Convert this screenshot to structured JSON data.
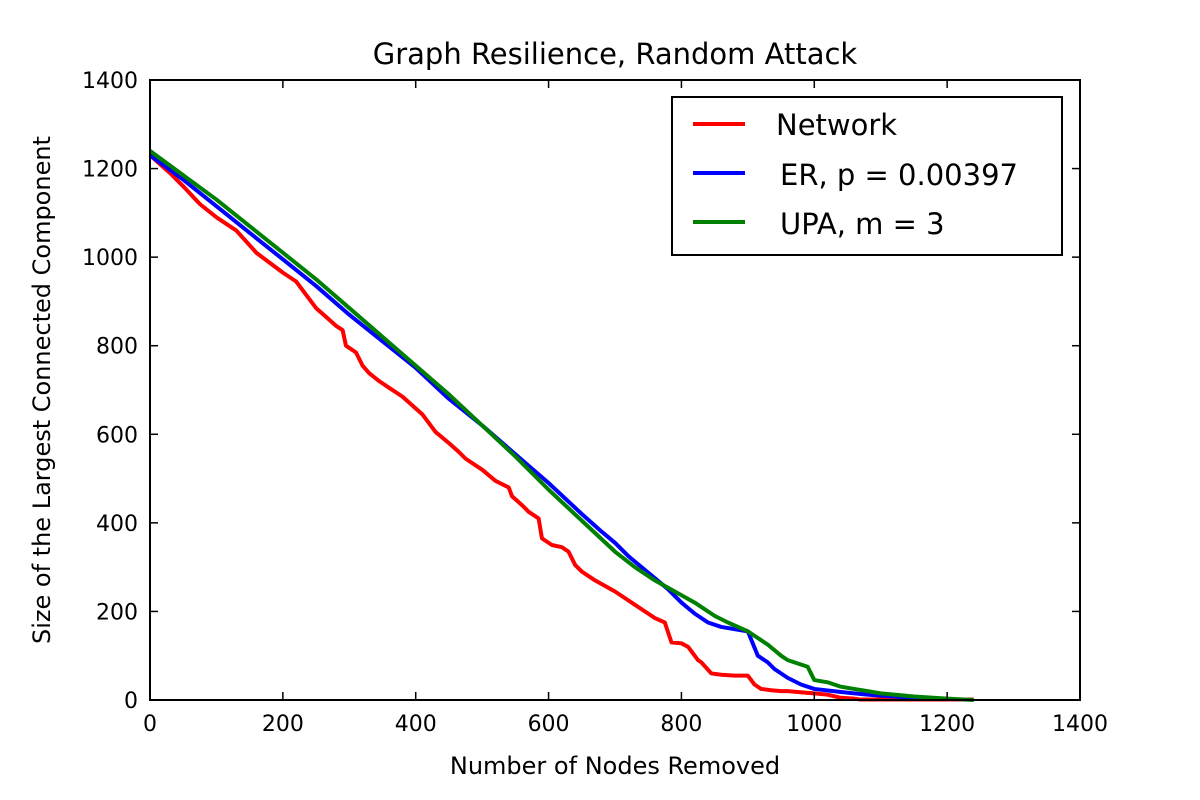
{
  "chart_data": {
    "type": "line",
    "title": "Graph Resilience, Random Attack",
    "xlabel": "Number of Nodes Removed",
    "ylabel": "Size of the Largest Connected Component",
    "xlim": [
      0,
      1400
    ],
    "ylim": [
      0,
      1400
    ],
    "xticks": [
      "0",
      "200",
      "400",
      "600",
      "800",
      "1000",
      "1200",
      "1400"
    ],
    "yticks": [
      "0",
      "200",
      "400",
      "600",
      "800",
      "1000",
      "1200",
      "1400"
    ],
    "grid": false,
    "legend_position": "top-right",
    "series": [
      {
        "name": "Network",
        "color": "#ff0000",
        "x": [
          0,
          30,
          50,
          75,
          100,
          130,
          160,
          200,
          220,
          235,
          250,
          265,
          280,
          290,
          295,
          310,
          320,
          330,
          345,
          360,
          380,
          395,
          410,
          425,
          430,
          450,
          465,
          475,
          490,
          500,
          520,
          540,
          545,
          560,
          570,
          585,
          590,
          605,
          620,
          630,
          640,
          650,
          670,
          700,
          715,
          730,
          750,
          760,
          775,
          785,
          800,
          810,
          825,
          830,
          845,
          860,
          880,
          900,
          910,
          920,
          935,
          950,
          960,
          975,
          990,
          1000,
          1020,
          1040,
          1060,
          1070,
          1240
        ],
        "y": [
          1230,
          1190,
          1160,
          1120,
          1090,
          1060,
          1010,
          965,
          945,
          915,
          885,
          865,
          845,
          835,
          800,
          785,
          755,
          738,
          720,
          705,
          685,
          665,
          645,
          615,
          605,
          580,
          560,
          545,
          530,
          520,
          495,
          480,
          460,
          440,
          425,
          410,
          365,
          350,
          345,
          335,
          305,
          290,
          270,
          245,
          230,
          215,
          195,
          185,
          175,
          130,
          128,
          120,
          90,
          85,
          60,
          57,
          55,
          55,
          35,
          25,
          22,
          20,
          20,
          18,
          16,
          15,
          12,
          5,
          3,
          1,
          1
        ]
      },
      {
        "name": "ER, p = 0.00397",
        "color": "#0000ff",
        "x": [
          0,
          50,
          100,
          150,
          200,
          250,
          300,
          350,
          400,
          450,
          500,
          550,
          600,
          650,
          680,
          700,
          720,
          740,
          760,
          780,
          800,
          820,
          840,
          860,
          880,
          900,
          915,
          920,
          930,
          940,
          960,
          980,
          1000,
          1040,
          1080,
          1100,
          1150,
          1200
        ],
        "y": [
          1230,
          1175,
          1115,
          1055,
          995,
          935,
          870,
          810,
          750,
          680,
          620,
          555,
          490,
          420,
          380,
          355,
          325,
          300,
          275,
          250,
          220,
          195,
          175,
          165,
          160,
          155,
          100,
          95,
          85,
          70,
          50,
          35,
          25,
          18,
          12,
          10,
          5,
          2
        ]
      },
      {
        "name": "UPA, m = 3",
        "color": "#008000",
        "x": [
          0,
          50,
          100,
          150,
          200,
          250,
          300,
          350,
          400,
          450,
          500,
          550,
          600,
          650,
          700,
          730,
          760,
          790,
          820,
          850,
          870,
          900,
          930,
          950,
          960,
          990,
          1000,
          1020,
          1030,
          1040,
          1060,
          1080,
          1100,
          1150,
          1200,
          1240
        ],
        "y": [
          1240,
          1185,
          1130,
          1070,
          1010,
          950,
          885,
          820,
          755,
          690,
          620,
          550,
          475,
          405,
          335,
          300,
          270,
          245,
          220,
          190,
          175,
          155,
          125,
          100,
          90,
          75,
          45,
          40,
          35,
          30,
          25,
          20,
          15,
          8,
          3,
          0
        ]
      }
    ]
  }
}
